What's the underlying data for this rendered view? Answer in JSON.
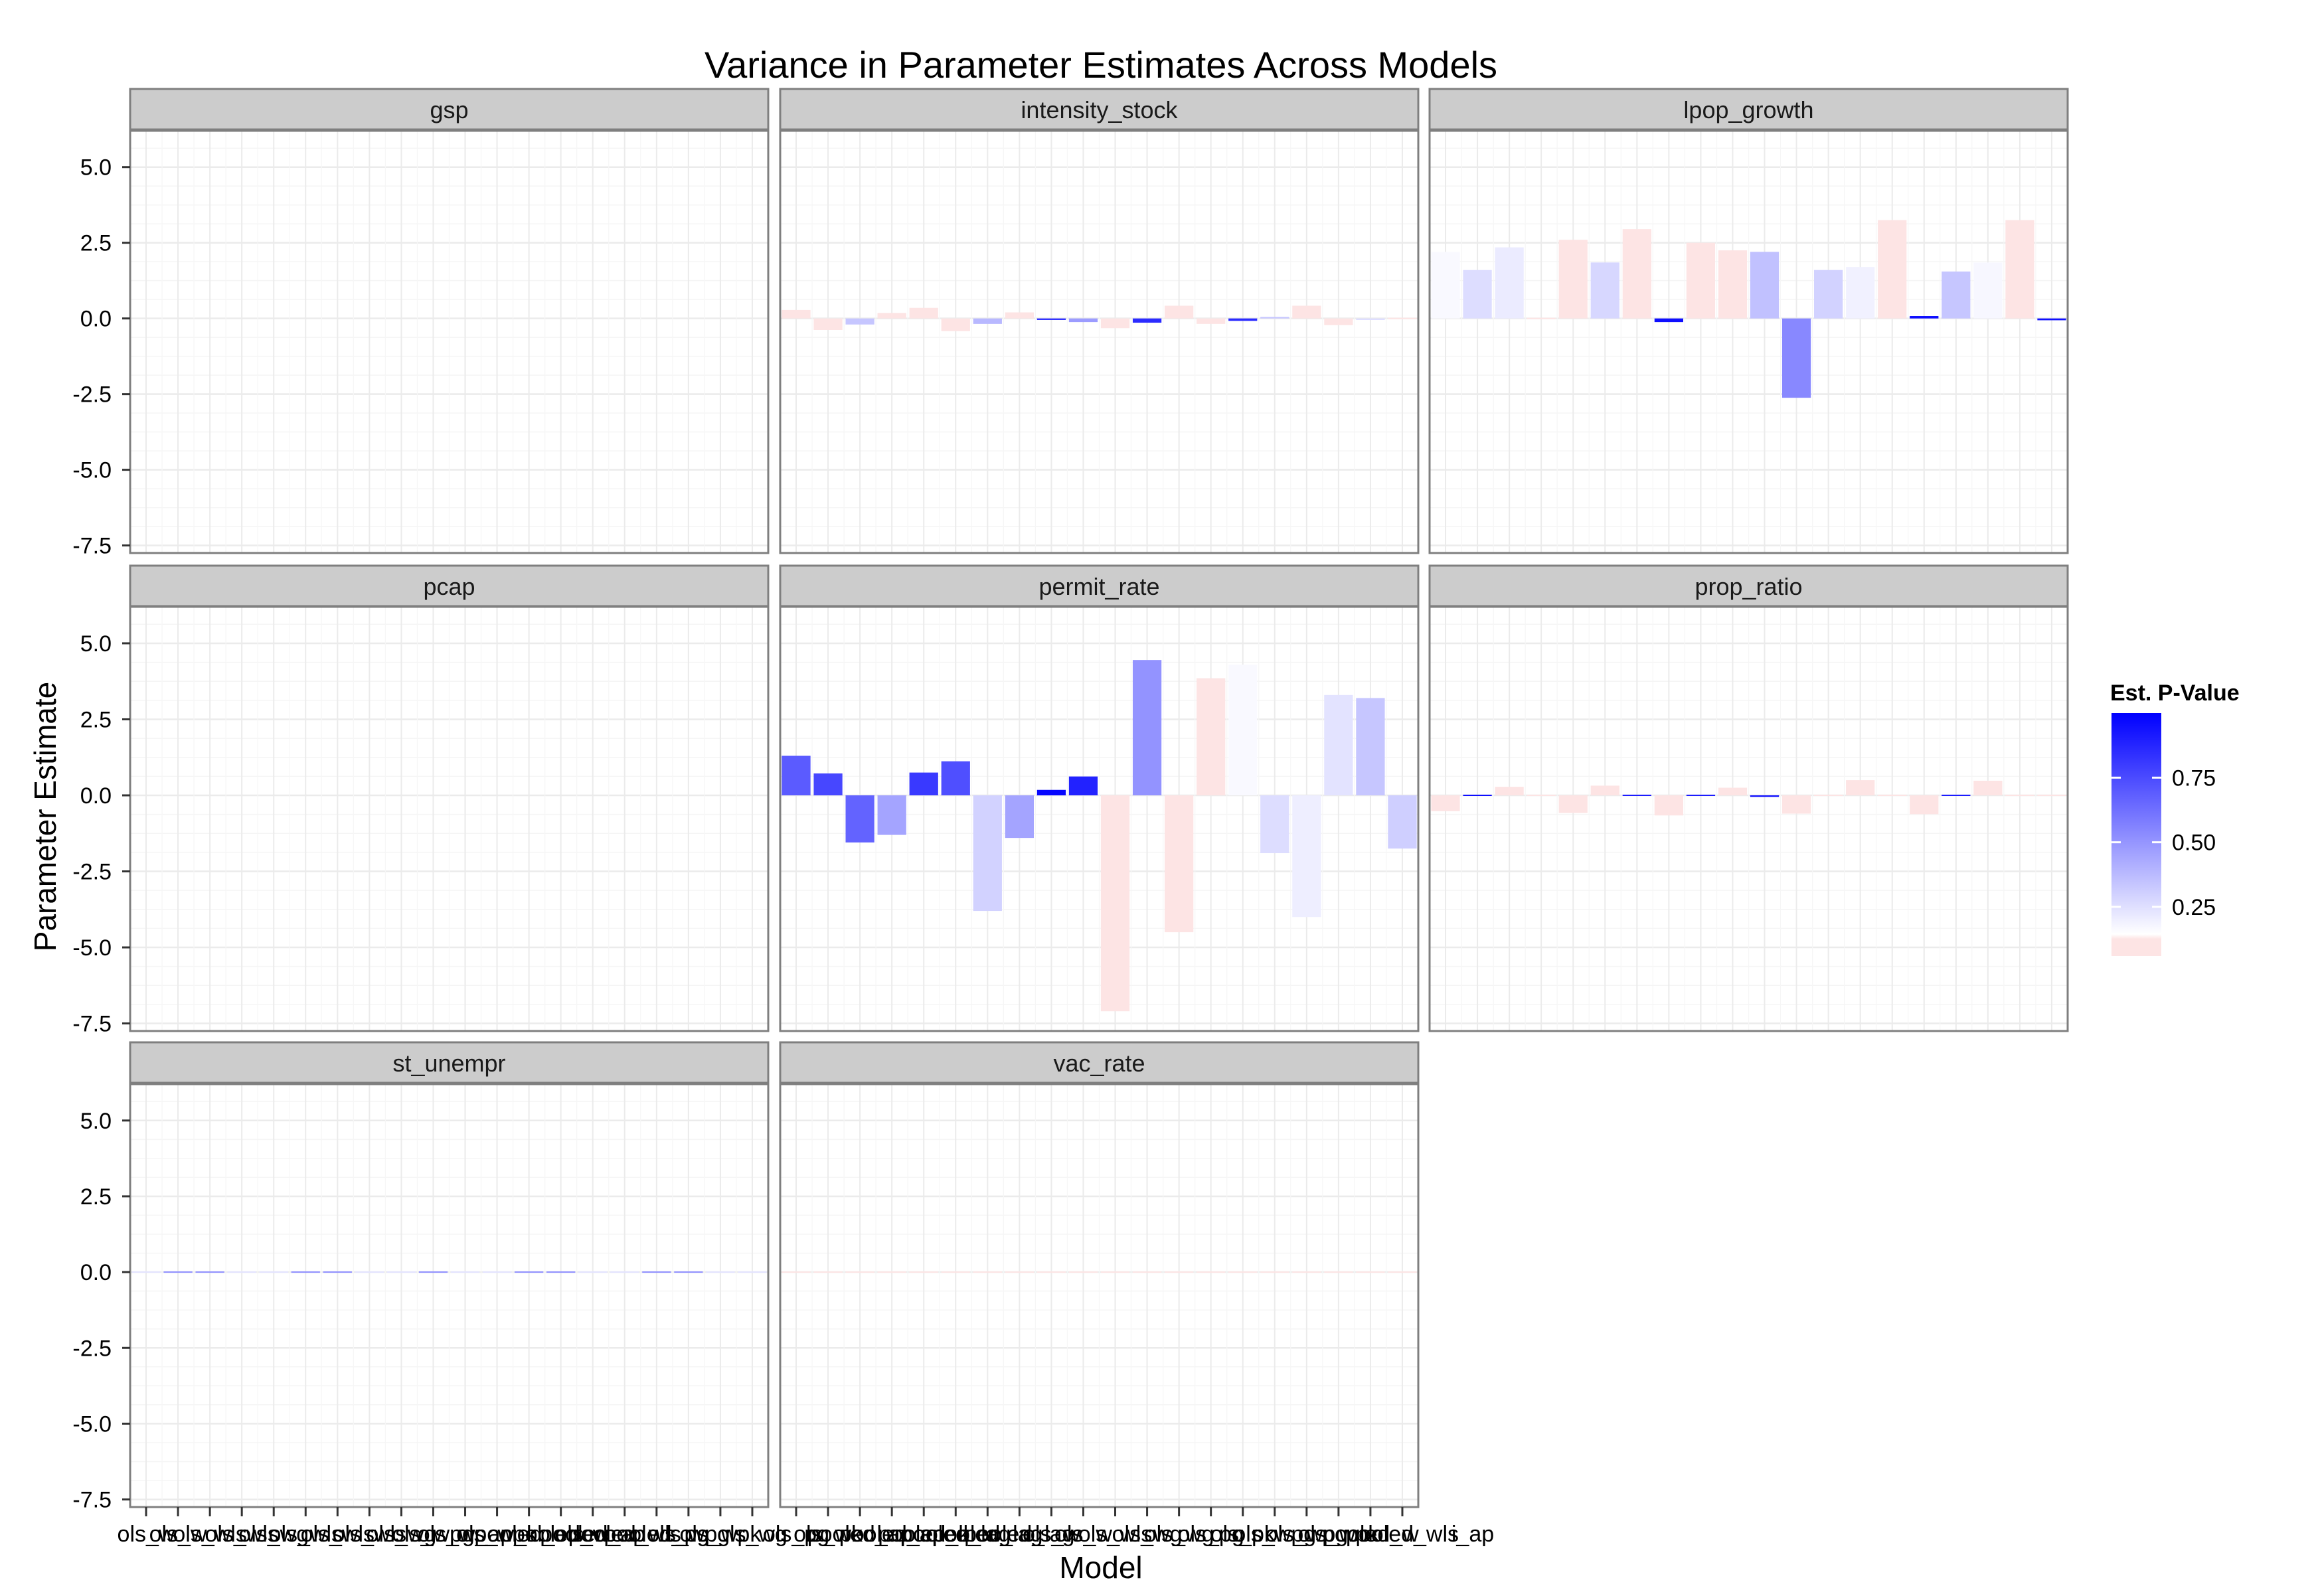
{
  "chart_data": {
    "type": "bar",
    "title": "Variance in Parameter Estimates Across Models",
    "xlabel": "Model",
    "ylabel": "Parameter Estimate",
    "ylim": [
      -7.75,
      6.2
    ],
    "yticks": [
      5.0,
      2.5,
      0.0,
      -2.5,
      -5.0,
      -7.5
    ],
    "ytick_labels": [
      "5.0",
      "2.5",
      "0.0",
      "-2.5",
      "-5.0",
      "-7.5"
    ],
    "grid": true,
    "facet_layout": "3 rows x 3 columns",
    "x_tick_labels_visible": [
      "ols_w",
      "ols_w",
      "ols_wls",
      "ols_wls",
      "ols_wg",
      "ols_wls",
      "ols_wls",
      "ols_wls",
      "ols_wg",
      "ols_wpg",
      "ols_w_ap",
      "ols_w_k",
      "pooled_ols",
      "pooled_w",
      "pooled_ap",
      "pooled_wls",
      "pooled_pg",
      "ols_wpg",
      "ols_wpk",
      "ols_wg",
      "ols_pg",
      "ols_wk",
      "pooled_ap",
      "pooled_ap",
      "pooled_k",
      "pooled_lag",
      "pooled_lag",
      "pooled_lag",
      "ols_w",
      "ols_w",
      "ols_wls",
      "ols_wg",
      "ols_wg",
      "ols_pg",
      "ols_pk",
      "ols_wpg",
      "ols_wpg",
      "ols_wpk",
      "pooled_w",
      "pooled_wls",
      "pooled_pk",
      "pooled_pg",
      "pooled_ap",
      "pooled_ap",
      "pooled_k",
      "pooled_pg",
      "pooled_lag",
      "pooled_w",
      "ols_wpg",
      "ols_pooled",
      "ols_ap",
      "ols_wpk",
      "ols_pooled",
      "ols_ap",
      "ols_wpk",
      "ols_pooled",
      "ols_ap",
      "ols_wpk",
      "lpoii_ap"
    ],
    "x_tick_label_last": "i_ap",
    "legend": {
      "title": "Est. P-Value",
      "placement": "right",
      "breaks": [
        0.75,
        0.5,
        0.25
      ],
      "break_labels": [
        "0.75",
        "0.50",
        "0.25"
      ],
      "low_color": "#fde4e4",
      "mid_color": "#ffffff",
      "high_color": "#0000ff"
    },
    "panels": [
      {
        "name": "gsp",
        "estimates": [],
        "pvalues": []
      },
      {
        "name": "intensity_stock",
        "estimates": [
          0.28,
          -0.38,
          -0.2,
          0.18,
          0.35,
          -0.42,
          -0.18,
          0.2,
          -0.05,
          -0.12,
          -0.32,
          -0.14,
          0.42,
          -0.18,
          -0.08,
          0.05,
          0.42,
          -0.22,
          -0.05,
          0.02
        ],
        "pvalues": [
          0.08,
          0.06,
          0.3,
          0.08,
          0.06,
          0.05,
          0.35,
          0.08,
          0.85,
          0.45,
          0.05,
          0.85,
          0.05,
          0.04,
          0.85,
          0.3,
          0.05,
          0.06,
          0.22,
          0.1
        ]
      },
      {
        "name": "lpop_growth",
        "estimates": [
          2.2,
          1.6,
          2.35,
          0.0,
          2.6,
          1.85,
          2.95,
          -0.12,
          2.5,
          2.25,
          2.2,
          -2.62,
          1.6,
          1.7,
          3.25,
          0.08,
          1.55,
          1.85,
          3.25,
          -0.06
        ],
        "pvalues": [
          0.12,
          0.22,
          0.17,
          0.1,
          0.08,
          0.24,
          0.07,
          0.95,
          0.08,
          0.07,
          0.32,
          0.52,
          0.26,
          0.15,
          0.05,
          0.95,
          0.3,
          0.13,
          0.05,
          0.95
        ]
      },
      {
        "name": "pcap",
        "estimates": [],
        "pvalues": []
      },
      {
        "name": "permit_rate",
        "estimates": [
          1.3,
          0.72,
          -1.55,
          -1.3,
          0.75,
          1.12,
          -3.8,
          -1.4,
          0.18,
          0.62,
          -7.1,
          4.45,
          -4.5,
          3.85,
          4.3,
          -1.9,
          -4.0,
          3.3,
          3.2,
          -1.75
        ],
        "pvalues": [
          0.68,
          0.75,
          0.65,
          0.42,
          0.8,
          0.72,
          0.26,
          0.42,
          0.98,
          0.88,
          0.06,
          0.48,
          0.08,
          0.1,
          0.12,
          0.22,
          0.16,
          0.2,
          0.3,
          0.27
        ]
      },
      {
        "name": "prop_ratio",
        "estimates": [
          -0.52,
          0.02,
          0.28,
          0.0,
          -0.58,
          0.32,
          -0.02,
          -0.66,
          -0.04,
          0.25,
          -0.05,
          -0.6,
          0.0,
          0.5,
          0.0,
          -0.62,
          -0.04,
          0.48,
          0.0,
          0.0
        ],
        "pvalues": [
          0.04,
          0.95,
          0.05,
          0.1,
          0.04,
          0.05,
          0.9,
          0.04,
          0.9,
          0.05,
          0.95,
          0.04,
          0.1,
          0.04,
          0.1,
          0.04,
          0.9,
          0.04,
          0.1,
          0.1
        ]
      },
      {
        "name": "st_unempr",
        "estimates": [
          0.0,
          0.01,
          0.01,
          0.0,
          0.0,
          0.01,
          0.01,
          0.0,
          0.0,
          0.01,
          0.0,
          0.0,
          0.01,
          0.01,
          0.0,
          0.0,
          0.01,
          0.01,
          0.0,
          0.0
        ],
        "pvalues": [
          0.2,
          0.5,
          0.5,
          0.2,
          0.2,
          0.5,
          0.5,
          0.2,
          0.2,
          0.5,
          0.2,
          0.2,
          0.5,
          0.5,
          0.2,
          0.2,
          0.5,
          0.5,
          0.2,
          0.2
        ]
      },
      {
        "name": "vac_rate",
        "estimates": [
          0.0,
          0.0,
          0.0,
          0.0,
          0.0,
          0.0,
          0.0,
          0.0,
          0.0,
          0.0,
          0.0,
          0.0,
          0.0,
          0.0,
          0.0,
          0.0,
          0.0,
          0.0,
          0.0,
          0.0
        ],
        "pvalues": [
          0.1,
          0.1,
          0.1,
          0.1,
          0.1,
          0.1,
          0.1,
          0.1,
          0.1,
          0.1,
          0.1,
          0.1,
          0.1,
          0.1,
          0.1,
          0.1,
          0.1,
          0.1,
          0.1,
          0.1
        ]
      }
    ]
  }
}
